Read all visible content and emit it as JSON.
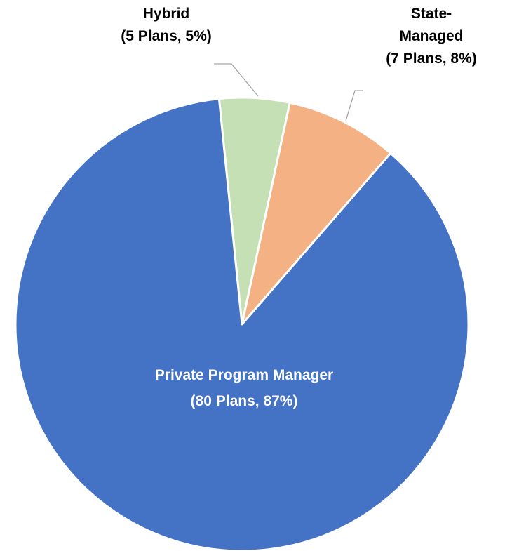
{
  "chart_data": {
    "type": "pie",
    "categories": [
      "Hybrid",
      "State-Managed",
      "Private Program Manager"
    ],
    "values": [
      5,
      8,
      87
    ],
    "value_labels": [
      "(5 Plans, 5%)",
      "(7 Plans, 8%)",
      "(80 Plans, 87%)"
    ],
    "colors": [
      "#c5e0b4",
      "#f4b183",
      "#4472c4"
    ]
  }
}
